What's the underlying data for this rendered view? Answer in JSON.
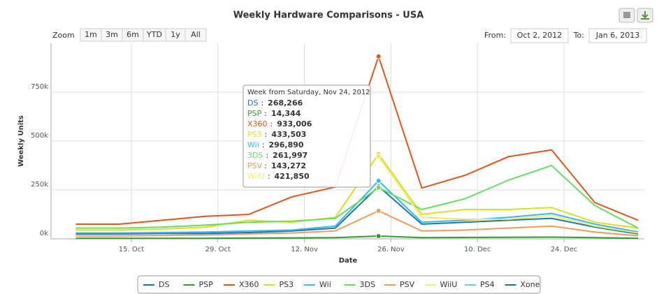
{
  "chart_data": {
    "type": "line",
    "title": "Weekly Hardware Comparisons - USA",
    "y_label": "Weekly Units",
    "x_label": "Date",
    "zoom": {
      "label": "Zoom",
      "buttons": [
        "1m",
        "3m",
        "6m",
        "YTD",
        "1y",
        "All"
      ]
    },
    "range": {
      "from_label": "From:",
      "from": "Oct 2, 2012",
      "to_label": "To:",
      "to": "Jan 6, 2013"
    },
    "x": [
      "2012-10-06",
      "2012-10-13",
      "2012-10-20",
      "2012-10-27",
      "2012-11-03",
      "2012-11-10",
      "2012-11-17",
      "2012-11-24",
      "2012-12-01",
      "2012-12-08",
      "2012-12-15",
      "2012-12-22",
      "2012-12-29",
      "2013-01-05"
    ],
    "xlim": [
      "2012-10-02",
      "2013-01-06"
    ],
    "xticks": [
      {
        "value": "2012-10-15",
        "label": "15. Oct"
      },
      {
        "value": "2012-10-29",
        "label": "29. Oct"
      },
      {
        "value": "2012-11-12",
        "label": "12. Nov"
      },
      {
        "value": "2012-11-26",
        "label": "26. Nov"
      },
      {
        "value": "2012-12-10",
        "label": "10. Dec"
      },
      {
        "value": "2012-12-24",
        "label": "24. Dec"
      }
    ],
    "ylim": [
      0,
      1000000
    ],
    "yticks": [
      {
        "value": 0,
        "label": "0k"
      },
      {
        "value": 250000,
        "label": "250k"
      },
      {
        "value": 500000,
        "label": "500k"
      },
      {
        "value": 750000,
        "label": "750k"
      }
    ],
    "grid": true,
    "series": [
      {
        "name": "DS",
        "color": "#1b74b4",
        "values": [
          25000,
          25000,
          27000,
          28000,
          32000,
          40000,
          55000,
          268266,
          75000,
          85000,
          95000,
          105000,
          60000,
          25000
        ]
      },
      {
        "name": "PSP",
        "color": "#2f9e2f",
        "values": [
          3000,
          3000,
          3000,
          3000,
          4000,
          5000,
          6000,
          14344,
          6000,
          7000,
          8000,
          9000,
          6000,
          3000
        ]
      },
      {
        "name": "X360",
        "color": "#e0561c",
        "values": [
          75000,
          75000,
          95000,
          115000,
          125000,
          215000,
          265000,
          933006,
          260000,
          325000,
          420000,
          455000,
          185000,
          95000
        ]
      },
      {
        "name": "PS3",
        "color": "#dede1e",
        "values": [
          45000,
          45000,
          50000,
          60000,
          95000,
          85000,
          110000,
          433503,
          125000,
          150000,
          150000,
          160000,
          85000,
          55000
        ]
      },
      {
        "name": "Wii",
        "color": "#33bbee",
        "values": [
          30000,
          30000,
          32000,
          35000,
          40000,
          45000,
          65000,
          296890,
          85000,
          95000,
          110000,
          130000,
          75000,
          35000
        ]
      },
      {
        "name": "3DS",
        "color": "#66dd66",
        "values": [
          55000,
          55000,
          60000,
          70000,
          85000,
          90000,
          105000,
          261997,
          150000,
          205000,
          300000,
          375000,
          170000,
          55000
        ]
      },
      {
        "name": "PSV",
        "color": "#f39a5a",
        "values": [
          15000,
          15000,
          17000,
          20000,
          25000,
          30000,
          40000,
          143272,
          40000,
          45000,
          55000,
          65000,
          35000,
          15000
        ]
      },
      {
        "name": "WiiU",
        "color": "#f2e96a",
        "values": [
          null,
          null,
          null,
          null,
          null,
          null,
          null,
          421850,
          110000,
          100000,
          100000,
          120000,
          65000,
          30000
        ]
      },
      {
        "name": "PS4",
        "color": "#66ccdd",
        "values": [
          null,
          null,
          null,
          null,
          null,
          null,
          null,
          null,
          null,
          null,
          null,
          null,
          null,
          null
        ]
      },
      {
        "name": "Xone",
        "color": "#1f6fa8",
        "values": [
          null,
          null,
          null,
          null,
          null,
          null,
          null,
          null,
          null,
          null,
          null,
          null,
          null,
          null
        ]
      }
    ],
    "tooltip": {
      "title": "Week from Saturday, Nov 24, 2012",
      "x": "2012-11-24",
      "value_labels": [
        "268,266",
        "14,344",
        "933,006",
        "433,503",
        "296,890",
        "261,997",
        "143,272",
        "421,850"
      ]
    }
  }
}
